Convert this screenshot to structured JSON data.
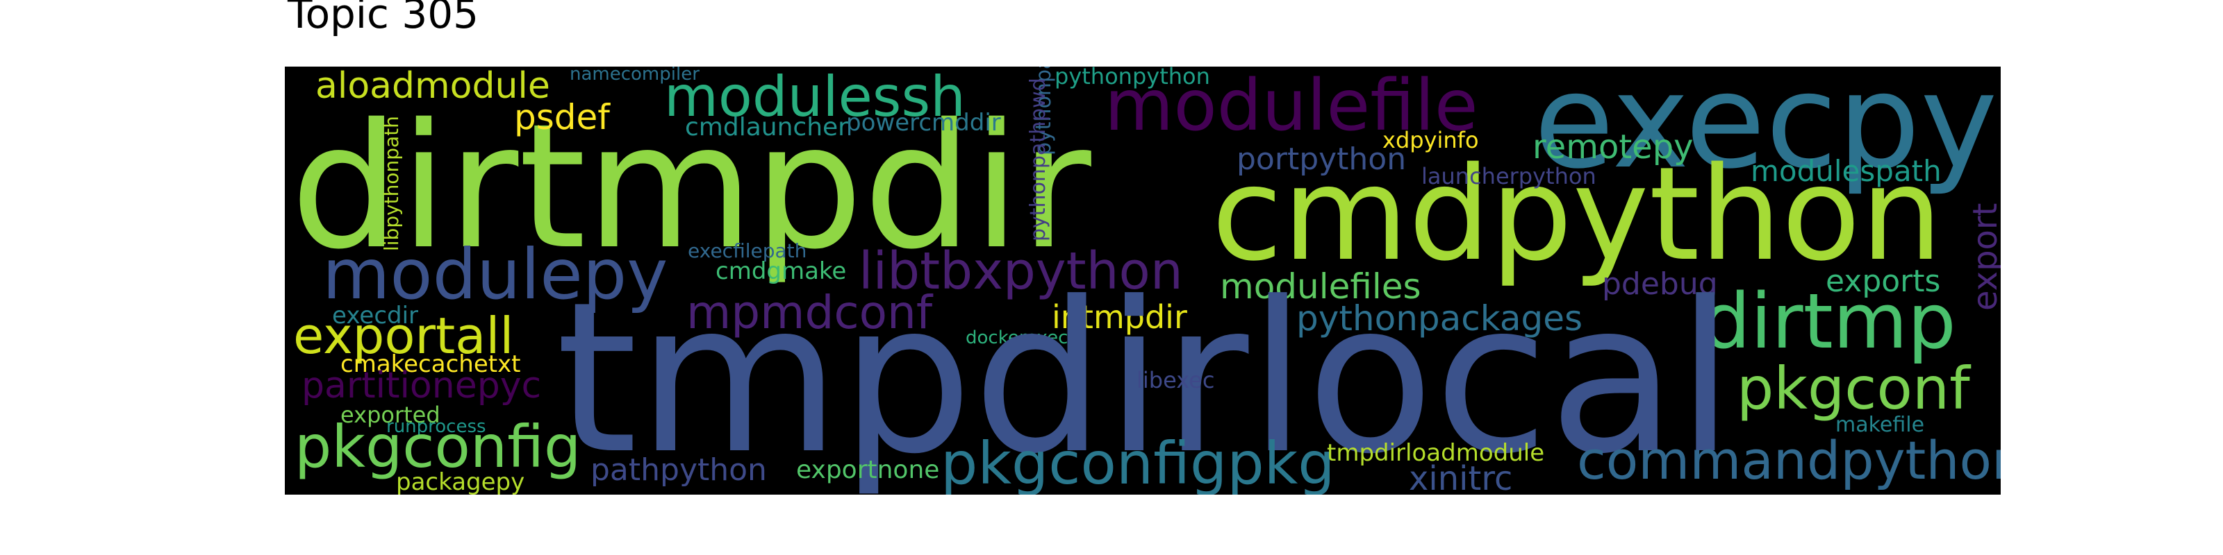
{
  "title": "Topic 305",
  "background_color": "#000000",
  "words": [
    {
      "text": "dirtmpdir",
      "color": "#8fd744"
    },
    {
      "text": "execpy",
      "color": "#2c728e"
    },
    {
      "text": "cmdpython",
      "color": "#a5db36"
    },
    {
      "text": "modulefile",
      "color": "#440154"
    },
    {
      "text": "modulessh",
      "color": "#29af7f"
    },
    {
      "text": "aloadmodule",
      "color": "#c8e020"
    },
    {
      "text": "namecompiler",
      "color": "#2c728e"
    },
    {
      "text": "pythonpython",
      "color": "#1fa088"
    },
    {
      "text": "psdef",
      "color": "#fde725"
    },
    {
      "text": "cmdlauncher",
      "color": "#21918c"
    },
    {
      "text": "powercmddir",
      "color": "#2a788e"
    },
    {
      "text": "pythonpathpwd",
      "color": "#31688e"
    },
    {
      "text": "xdpyinfo",
      "color": "#fde725"
    },
    {
      "text": "remotepy",
      "color": "#3fbc73"
    },
    {
      "text": "portpython",
      "color": "#3b528b"
    },
    {
      "text": "launcherpython",
      "color": "#414487"
    },
    {
      "text": "modulespath",
      "color": "#1e9b8a"
    },
    {
      "text": "libpythonpath",
      "color": "#b5de2b"
    },
    {
      "text": "export",
      "color": "#482878"
    },
    {
      "text": "modulepy",
      "color": "#3b528b"
    },
    {
      "text": "libtbxpython",
      "color": "#481f70"
    },
    {
      "text": "execfilepath",
      "color": "#31688e"
    },
    {
      "text": "pythonpathpwd",
      "color": "#433e85"
    },
    {
      "text": "cmdgmake",
      "color": "#3dbc74"
    },
    {
      "text": "modulefiles",
      "color": "#5ec962"
    },
    {
      "text": "exports",
      "color": "#35b779"
    },
    {
      "text": "pdebug",
      "color": "#46327e"
    },
    {
      "text": "mpmdconf",
      "color": "#482173"
    },
    {
      "text": "intmpdir",
      "color": "#e5e419"
    },
    {
      "text": "pythonpackages",
      "color": "#2d708e"
    },
    {
      "text": "execdir",
      "color": "#26828e"
    },
    {
      "text": "exportall",
      "color": "#d0e11c"
    },
    {
      "text": "dockerexec",
      "color": "#2db27d"
    },
    {
      "text": "dirtmp",
      "color": "#4ac16d"
    },
    {
      "text": "tmpdirlocal",
      "color": "#3b528b"
    },
    {
      "text": "cmakecachetxt",
      "color": "#fde725"
    },
    {
      "text": "partitionepyc",
      "color": "#440154"
    },
    {
      "text": "libexec",
      "color": "#3e4989"
    },
    {
      "text": "pkgconf",
      "color": "#7ad151"
    },
    {
      "text": "exported",
      "color": "#75d054"
    },
    {
      "text": "runprocess",
      "color": "#1f988b"
    },
    {
      "text": "makefile",
      "color": "#25858e"
    },
    {
      "text": "pkgconfig",
      "color": "#6ece58"
    },
    {
      "text": "pathpython",
      "color": "#3e4a89"
    },
    {
      "text": "exportnone",
      "color": "#52c569"
    },
    {
      "text": "pkgconfigpkg",
      "color": "#2a788e"
    },
    {
      "text": "tmpdirloadmodule",
      "color": "#b5de2b"
    },
    {
      "text": "commandpython",
      "color": "#31688e"
    },
    {
      "text": "xinitrc",
      "color": "#3b528b"
    },
    {
      "text": "packagepy",
      "color": "#b5de2b"
    }
  ]
}
